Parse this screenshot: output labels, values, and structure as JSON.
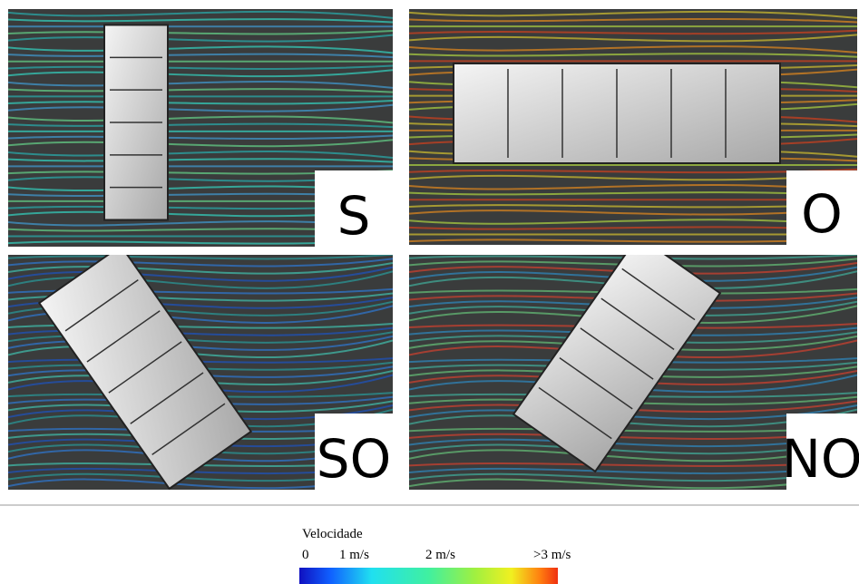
{
  "panels": [
    {
      "label": "S"
    },
    {
      "label": "O"
    },
    {
      "label": "SO"
    },
    {
      "label": "NO"
    }
  ],
  "legend": {
    "title": "Velocidade",
    "ticks": [
      "0",
      "1 m/s",
      "2 m/s",
      ">3 m/s"
    ]
  }
}
